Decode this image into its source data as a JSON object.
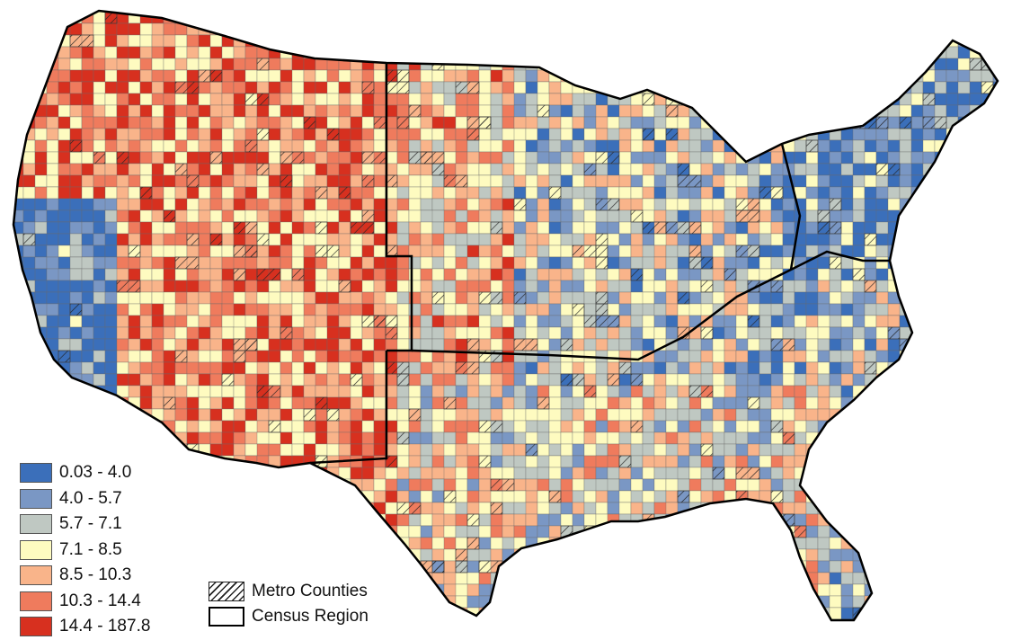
{
  "colors": {
    "class_colors": [
      "#3b6fba",
      "#7a97c4",
      "#bfc8c2",
      "#fefbc0",
      "#f9b48a",
      "#ef7b5d",
      "#d7301f"
    ],
    "region_border": "#000000",
    "background": "#ffffff"
  },
  "legend": {
    "classes": [
      {
        "label": "0.03 - 4.0"
      },
      {
        "label": "4.0 - 5.7"
      },
      {
        "label": "5.7 - 7.1"
      },
      {
        "label": "7.1 - 8.5"
      },
      {
        "label": "8.5 - 10.3"
      },
      {
        "label": "10.3 - 14.4"
      },
      {
        "label": "14.4 - 187.8"
      }
    ],
    "metro_label": "Metro Counties",
    "region_label": "Census Region"
  }
}
